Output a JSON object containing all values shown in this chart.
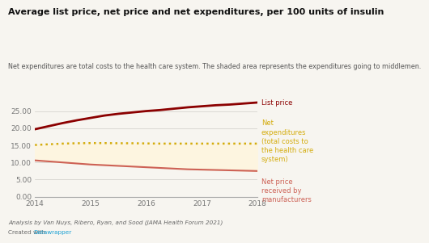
{
  "title": "Average list price, net price and net expenditures, per 100 units of insulin",
  "subtitle": "Net expenditures are total costs to the health care system. The shaded area represents the expenditures going to middlemen.",
  "footnote": "Analysis by Van Nuys, Ribero, Ryan, and Sood (JAMA Health Forum 2021)",
  "footnote2": "Created with ",
  "footnote2_link": "Datawrapper",
  "years": [
    2014,
    2014.25,
    2014.5,
    2014.75,
    2015,
    2015.25,
    2015.5,
    2015.75,
    2016,
    2016.25,
    2016.5,
    2016.75,
    2017,
    2017.25,
    2017.5,
    2017.75,
    2018
  ],
  "list_price": [
    19.7,
    20.6,
    21.5,
    22.3,
    23.0,
    23.7,
    24.2,
    24.6,
    25.0,
    25.3,
    25.7,
    26.1,
    26.4,
    26.7,
    26.9,
    27.2,
    27.5
  ],
  "net_expenditures": [
    15.1,
    15.3,
    15.5,
    15.6,
    15.65,
    15.65,
    15.6,
    15.6,
    15.55,
    15.5,
    15.5,
    15.5,
    15.5,
    15.5,
    15.5,
    15.5,
    15.5
  ],
  "net_price": [
    10.6,
    10.3,
    10.0,
    9.7,
    9.4,
    9.2,
    9.0,
    8.8,
    8.6,
    8.4,
    8.2,
    8.0,
    7.9,
    7.8,
    7.7,
    7.6,
    7.5
  ],
  "list_price_color": "#8B0000",
  "net_expenditures_color": "#D4AC0D",
  "net_price_color": "#CD6155",
  "shade_color": "#FDF5E0",
  "background_color": "#F7F5F0",
  "ylim": [
    0,
    30
  ],
  "yticks": [
    0.0,
    5.0,
    10.0,
    15.0,
    20.0,
    25.0
  ],
  "xlabel_years": [
    2014,
    2015,
    2016,
    2017,
    2018
  ],
  "label_list_price": "List price",
  "label_net_exp": "Net\nexpenditures\n(total costs to\nthe health care\nsystem)",
  "label_net_price": "Net price\nreceived by\nmanufacturers"
}
